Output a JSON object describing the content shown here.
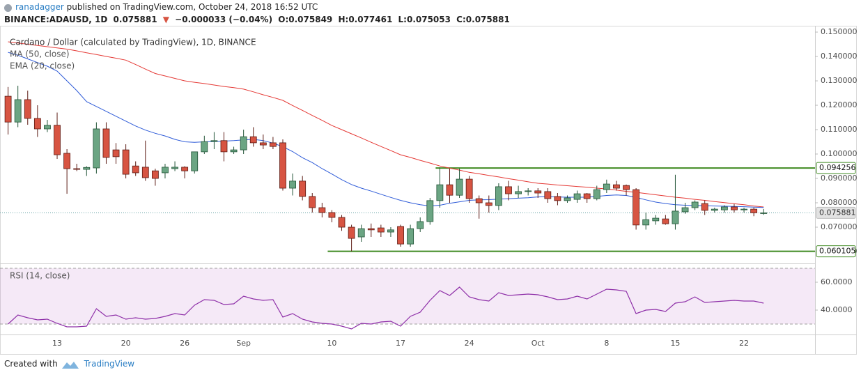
{
  "header": {
    "author": "ranadagger",
    "published": "published on TradingView.com, October 24, 2018 16:52 UTC"
  },
  "quote": {
    "symbol": "BINANCE:ADAUSD, 1D",
    "price": "0.075881",
    "arrow": "▼",
    "change": "−0.000033 (−0.04%)",
    "open_label": "O:",
    "open": "0.075849",
    "high_label": "H:",
    "high": "0.077461",
    "low_label": "L:",
    "low": "0.075053",
    "close_label": "C:",
    "close": "0.075881"
  },
  "chart_data": [
    {
      "type": "candlestick",
      "title": "Cardano / Dollar (calculated by TradingView), 1D, BINANCE",
      "categories": [
        null,
        null,
        null,
        null,
        null,
        "13",
        null,
        null,
        null,
        null,
        null,
        null,
        "20",
        null,
        null,
        null,
        null,
        null,
        "26",
        null,
        null,
        null,
        null,
        null,
        "Sep",
        null,
        null,
        null,
        null,
        null,
        null,
        null,
        null,
        "10",
        null,
        null,
        null,
        null,
        null,
        null,
        "17",
        null,
        null,
        null,
        null,
        null,
        null,
        "24",
        null,
        null,
        null,
        null,
        null,
        null,
        "Oct",
        null,
        null,
        null,
        null,
        null,
        null,
        "8",
        null,
        null,
        null,
        null,
        null,
        null,
        "15",
        null,
        null,
        null,
        null,
        null,
        null,
        "22",
        null,
        null
      ],
      "open": [
        0.1237,
        0.1131,
        0.1223,
        0.1146,
        0.1103,
        0.1118,
        0.1003,
        0.094,
        0.0937,
        0.0943,
        0.1103,
        0.1017,
        0.1017,
        0.0951,
        0.0946,
        0.0931,
        0.0923,
        0.094,
        0.0946,
        0.0931,
        0.1009,
        0.1051,
        0.1055,
        0.1009,
        0.1017,
        0.1071,
        0.1046,
        0.1046,
        0.1046,
        0.086,
        0.0889,
        0.0826,
        0.078,
        0.076,
        0.074,
        0.07,
        0.066,
        0.0694,
        0.0697,
        0.068,
        0.0703,
        0.0631,
        0.0694,
        0.0723,
        0.0809,
        0.0874,
        0.0831,
        0.0897,
        0.0817,
        0.08,
        0.0789,
        0.0866,
        0.0837,
        0.0846,
        0.0849,
        0.0846,
        0.0826,
        0.0809,
        0.0814,
        0.0837,
        0.0817,
        0.0854,
        0.0874,
        0.0871,
        0.0854,
        0.0709,
        0.0726,
        0.0734,
        0.0714,
        0.0763,
        0.078,
        0.0797,
        0.0769,
        0.0771,
        0.0783,
        0.0771,
        0.0774,
        0.075849
      ],
      "high": [
        0.1275,
        0.128,
        0.126,
        0.12,
        0.114,
        0.117,
        0.102,
        0.096,
        0.095,
        0.113,
        0.113,
        0.1045,
        0.104,
        0.097,
        0.1055,
        0.094,
        0.096,
        0.097,
        0.095,
        0.101,
        0.1075,
        0.109,
        0.109,
        0.103,
        0.11,
        0.111,
        0.108,
        0.107,
        0.106,
        0.092,
        0.091,
        0.084,
        0.08,
        0.077,
        0.075,
        0.071,
        0.071,
        0.0715,
        0.071,
        0.07,
        0.071,
        0.071,
        0.074,
        0.082,
        0.0945,
        0.094,
        0.094,
        0.091,
        0.083,
        0.083,
        0.088,
        0.089,
        0.087,
        0.086,
        0.086,
        0.086,
        0.084,
        0.083,
        0.085,
        0.084,
        0.087,
        0.0895,
        0.089,
        0.0875,
        0.086,
        0.076,
        0.075,
        0.075,
        0.0915,
        0.08,
        0.081,
        0.081,
        0.078,
        0.079,
        0.0795,
        0.078,
        0.078,
        0.077461
      ],
      "low": [
        0.108,
        0.111,
        0.112,
        0.107,
        0.109,
        0.098,
        0.0837,
        0.093,
        0.091,
        0.092,
        0.096,
        0.096,
        0.09,
        0.091,
        0.089,
        0.087,
        0.09,
        0.093,
        0.09,
        0.092,
        0.1,
        0.102,
        0.097,
        0.1,
        0.1,
        0.103,
        0.102,
        0.102,
        0.085,
        0.083,
        0.081,
        0.076,
        0.074,
        0.072,
        0.0685,
        0.060105,
        0.064,
        0.066,
        0.066,
        0.066,
        0.062,
        0.062,
        0.068,
        0.071,
        0.078,
        0.08,
        0.082,
        0.08,
        0.0735,
        0.076,
        0.077,
        0.081,
        0.082,
        0.083,
        0.082,
        0.08,
        0.079,
        0.08,
        0.08,
        0.08,
        0.081,
        0.084,
        0.085,
        0.083,
        0.069,
        0.069,
        0.071,
        0.071,
        0.069,
        0.0755,
        0.077,
        0.075,
        0.076,
        0.076,
        0.076,
        0.076,
        0.0745,
        0.075053
      ],
      "close": [
        0.1131,
        0.1223,
        0.1146,
        0.1103,
        0.1118,
        0.0997,
        0.094,
        0.0937,
        0.0945,
        0.1103,
        0.0986,
        0.0989,
        0.0917,
        0.0923,
        0.0903,
        0.09,
        0.0946,
        0.0946,
        0.0931,
        0.1009,
        0.1051,
        0.1055,
        0.1009,
        0.1017,
        0.1071,
        0.1046,
        0.1037,
        0.1031,
        0.086,
        0.0889,
        0.0826,
        0.078,
        0.076,
        0.074,
        0.07,
        0.0654,
        0.0694,
        0.0689,
        0.068,
        0.0689,
        0.0631,
        0.0694,
        0.0723,
        0.0809,
        0.0874,
        0.0831,
        0.0897,
        0.0817,
        0.08,
        0.0789,
        0.0866,
        0.0837,
        0.0846,
        0.0849,
        0.084,
        0.0817,
        0.0809,
        0.082,
        0.0837,
        0.0817,
        0.0854,
        0.0877,
        0.086,
        0.0854,
        0.0709,
        0.0731,
        0.0737,
        0.0714,
        0.0766,
        0.078,
        0.0803,
        0.0769,
        0.0774,
        0.0783,
        0.0771,
        0.0774,
        0.0759,
        0.075881
      ],
      "up_color": "#6ba583",
      "down_color": "#d75442",
      "series": [
        {
          "name": "MA (50, close)",
          "color": "#e53935",
          "values": [
            0.146,
            0.1455,
            0.145,
            0.1445,
            0.144,
            0.1435,
            0.143,
            0.1423,
            0.1415,
            0.1408,
            0.14,
            0.1393,
            0.1385,
            0.1367,
            0.1348,
            0.133,
            0.132,
            0.131,
            0.13,
            0.1294,
            0.1289,
            0.1283,
            0.1277,
            0.1272,
            0.1266,
            0.1255,
            0.1243,
            0.1232,
            0.122,
            0.1199,
            0.1179,
            0.1158,
            0.1138,
            0.1117,
            0.11,
            0.1083,
            0.1066,
            0.1048,
            0.1031,
            0.1014,
            0.0997,
            0.0986,
            0.0974,
            0.0963,
            0.0951,
            0.0942,
            0.0934,
            0.0925,
            0.0919,
            0.0912,
            0.0906,
            0.0899,
            0.0893,
            0.0886,
            0.088,
            0.0877,
            0.0873,
            0.087,
            0.0867,
            0.0864,
            0.086,
            0.0857,
            0.0852,
            0.0847,
            0.0843,
            0.0838,
            0.0833,
            0.0828,
            0.0823,
            0.0819,
            0.0814,
            0.081,
            0.0805,
            0.0801,
            0.0796,
            0.0792,
            0.0787,
            0.0783
          ]
        },
        {
          "name": "EMA (20, close)",
          "color": "#2e5bd8",
          "values": [
            0.1417,
            0.1405,
            0.139,
            0.1375,
            0.136,
            0.134,
            0.13,
            0.126,
            0.1215,
            0.1195,
            0.1175,
            0.1155,
            0.1135,
            0.1115,
            0.1098,
            0.1085,
            0.1074,
            0.106,
            0.105,
            0.1048,
            0.105,
            0.1051,
            0.1053,
            0.1055,
            0.1058,
            0.106,
            0.1055,
            0.1045,
            0.103,
            0.101,
            0.0985,
            0.0965,
            0.094,
            0.0918,
            0.0895,
            0.0875,
            0.086,
            0.0848,
            0.0835,
            0.0822,
            0.081,
            0.08,
            0.0792,
            0.0787,
            0.079,
            0.0798,
            0.0804,
            0.081,
            0.0812,
            0.0813,
            0.0815,
            0.0817,
            0.0819,
            0.0821,
            0.0824,
            0.0825,
            0.0824,
            0.0823,
            0.0823,
            0.0823,
            0.0826,
            0.083,
            0.0832,
            0.083,
            0.0822,
            0.0812,
            0.0803,
            0.0797,
            0.0792,
            0.079,
            0.0789,
            0.0788,
            0.0787,
            0.0786,
            0.0785,
            0.0784,
            0.0782,
            0.0781
          ]
        }
      ],
      "levels": [
        {
          "value": 0.094256,
          "color": "#3f8a21"
        },
        {
          "value": 0.060105,
          "color": "#3f8a21"
        }
      ],
      "last_price": 0.075881,
      "ylim": [
        0.056,
        0.1523
      ],
      "yticks": [
        {
          "value": 0.06,
          "label": "0.060000"
        },
        {
          "value": 0.07,
          "label": "0.070000"
        },
        {
          "value": 0.08,
          "label": "0.080000"
        },
        {
          "value": 0.09,
          "label": "0.090000"
        },
        {
          "value": 0.1,
          "label": "0.100000"
        },
        {
          "value": 0.11,
          "label": "0.110000"
        },
        {
          "value": 0.12,
          "label": "0.120000"
        },
        {
          "value": 0.13,
          "label": "0.130000"
        },
        {
          "value": 0.14,
          "label": "0.140000"
        },
        {
          "value": 0.15,
          "label": "0.150000"
        }
      ]
    },
    {
      "type": "line",
      "title": "RSI (14, close)",
      "color": "#8e2fa8",
      "values": [
        30,
        36.5,
        34.5,
        33,
        33.5,
        30.5,
        28,
        28,
        28.5,
        41,
        35.5,
        36.5,
        33.5,
        34.5,
        33.5,
        34,
        35.5,
        37.5,
        36.5,
        43.5,
        47.5,
        47,
        44,
        44.5,
        50,
        48,
        47,
        47.5,
        35,
        37.5,
        33.5,
        31.5,
        30.5,
        30,
        28.5,
        26.5,
        30.5,
        30,
        31.5,
        32,
        28.5,
        35.5,
        38.5,
        47,
        54,
        50.5,
        56.5,
        49.5,
        47.5,
        46.5,
        52.5,
        50.5,
        51,
        51.5,
        51,
        49.5,
        47.5,
        48,
        50,
        48,
        51.5,
        55,
        54.5,
        53.5,
        37.5,
        40,
        40.5,
        39,
        45,
        46,
        49.5,
        45.5,
        46,
        46.5,
        47,
        46.5,
        46.5,
        45
      ],
      "band": [
        30,
        70
      ],
      "band_color": "#9c27b0",
      "ylim": [
        23.5,
        72.5
      ],
      "yticks": [
        {
          "value": 60,
          "label": "60.0000"
        },
        {
          "value": 40,
          "label": "40.0000"
        }
      ]
    }
  ],
  "footer": {
    "created": "Created with",
    "brand": "TradingView"
  }
}
